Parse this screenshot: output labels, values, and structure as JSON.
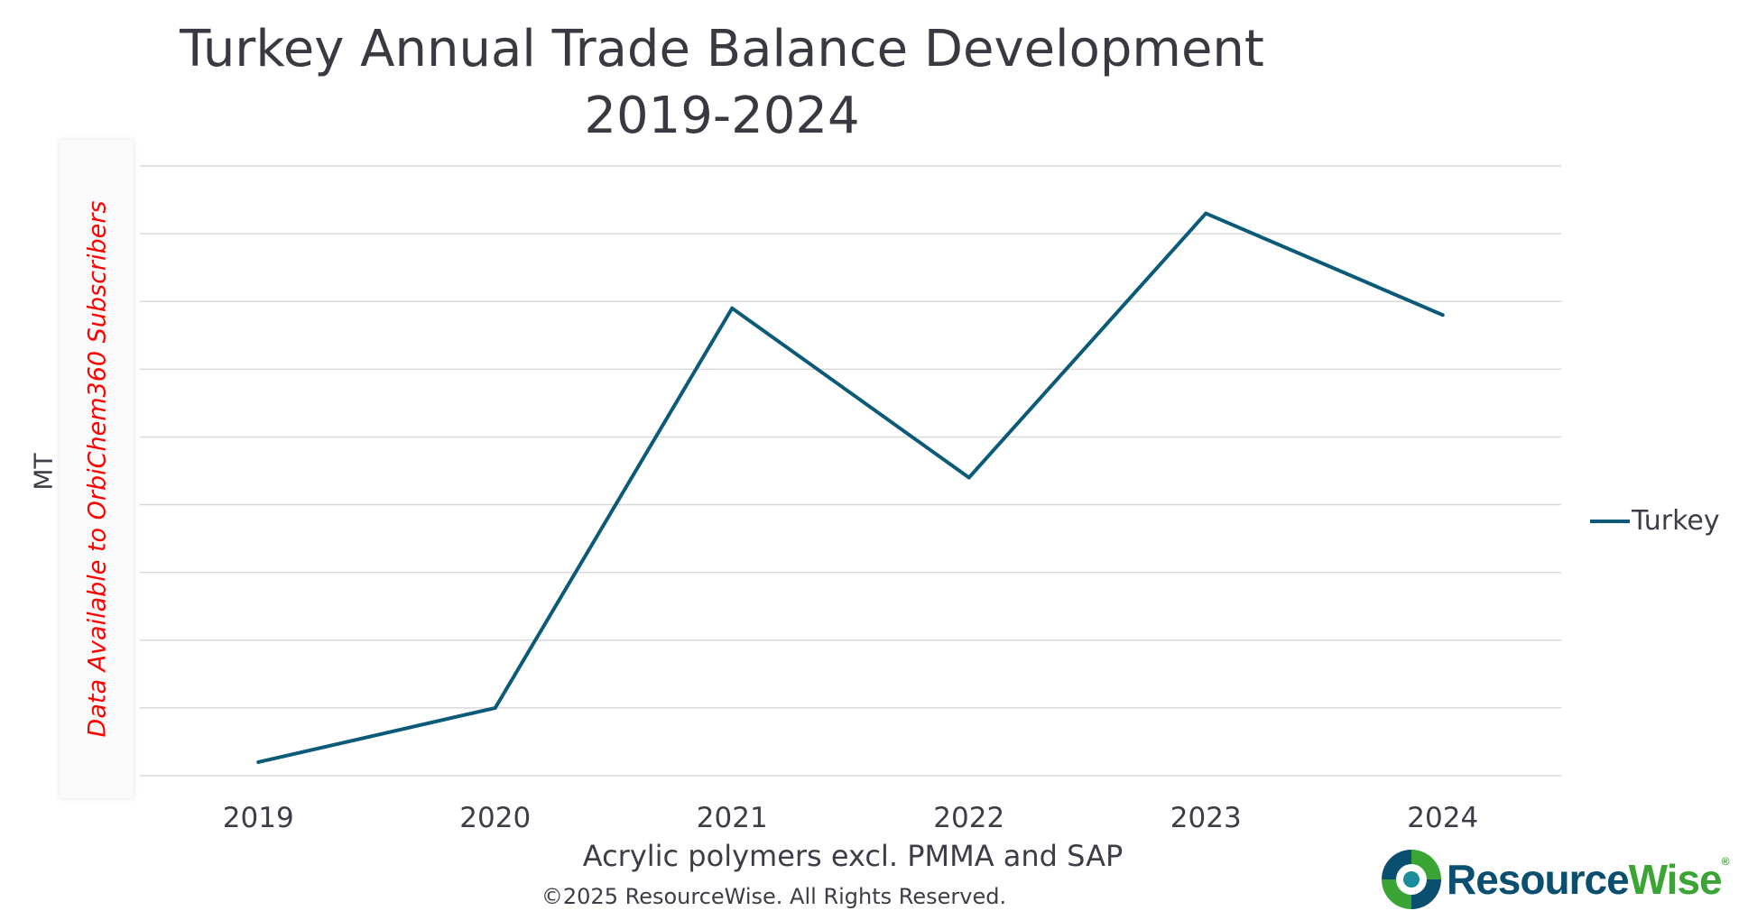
{
  "chart_data": {
    "type": "line",
    "title": "Turkey Annual Trade Balance Development",
    "subtitle": "2019-2024",
    "xlabel": "Acrylic polymers excl. PMMA and SAP",
    "ylabel": "MT",
    "categories": [
      "2019",
      "2020",
      "2021",
      "2022",
      "2023",
      "2024"
    ],
    "series": [
      {
        "name": "Turkey",
        "color": "#0a5a78",
        "values": [
          0.2,
          1.0,
          6.9,
          4.4,
          8.3,
          6.8
        ]
      }
    ],
    "ylim": [
      0,
      9
    ],
    "y_tick_labels_shown": false,
    "grid": true,
    "legend_position": "right"
  },
  "watermark": "Data Available to OrbiChem360 Subscribers",
  "copyright": "©2025 ResourceWise. All Rights Reserved.",
  "logo": {
    "part1": "Resource",
    "part2": "Wise",
    "mark": "®",
    "icon": "resourcewise-swirl-icon",
    "colors": {
      "blue": "#0a4e70",
      "green": "#3aa535"
    }
  }
}
